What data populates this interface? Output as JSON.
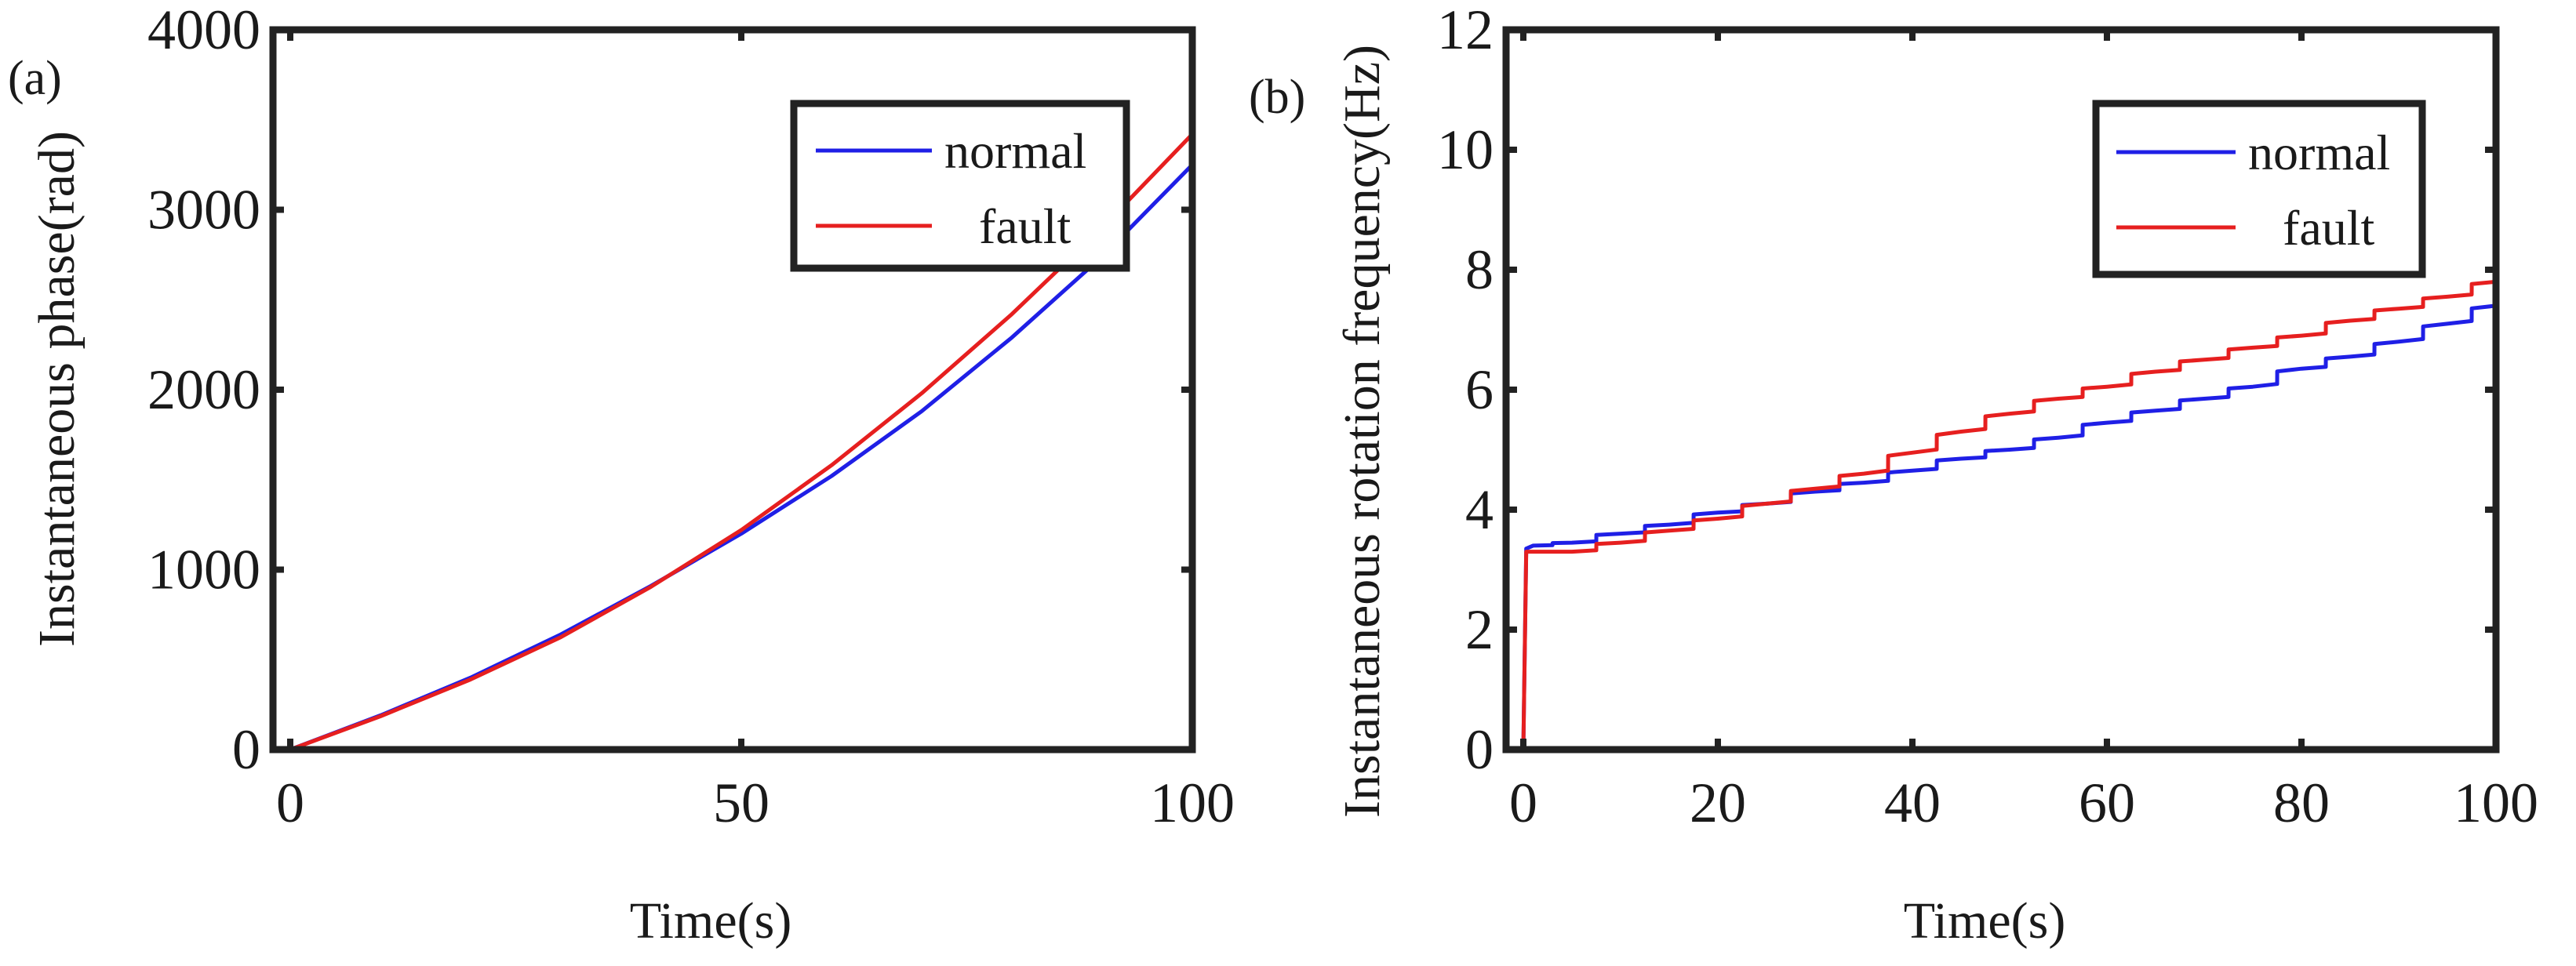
{
  "chart_data": [
    {
      "panel_label": "(a)",
      "type": "line",
      "xlabel": "Time(s)",
      "ylabel": "Instantaneous phase(rad)",
      "xlim": [
        0,
        100
      ],
      "ylim": [
        0,
        4000
      ],
      "xticks": [
        0,
        50,
        100
      ],
      "yticks": [
        0,
        1000,
        2000,
        3000,
        4000
      ],
      "grid": false,
      "legend_position": "top-right",
      "series": [
        {
          "name": "normal",
          "color": "#1f1fe6",
          "x": [
            0,
            10,
            20,
            30,
            40,
            50,
            60,
            70,
            80,
            90,
            100
          ],
          "values": [
            0,
            190,
            400,
            640,
            910,
            1200,
            1520,
            1880,
            2290,
            2740,
            3250
          ]
        },
        {
          "name": "fault",
          "color": "#e61f1f",
          "x": [
            0,
            10,
            20,
            30,
            40,
            50,
            60,
            70,
            80,
            90,
            100
          ],
          "values": [
            0,
            185,
            390,
            625,
            905,
            1220,
            1580,
            1980,
            2420,
            2900,
            3420
          ]
        }
      ]
    },
    {
      "panel_label": "(b)",
      "type": "line",
      "xlabel": "Time(s)",
      "ylabel": "Instantaneous rotation frequency(Hz)",
      "xlim": [
        0,
        100
      ],
      "ylim": [
        0,
        12
      ],
      "xticks": [
        0,
        20,
        40,
        60,
        80,
        100
      ],
      "yticks": [
        0,
        2,
        4,
        6,
        8,
        10,
        12
      ],
      "grid": false,
      "legend_position": "top-right",
      "series": [
        {
          "name": "normal",
          "color": "#1f1fe6",
          "x": [
            0,
            0.3,
            1,
            5,
            10,
            15,
            20,
            25,
            30,
            35,
            40,
            45,
            50,
            55,
            60,
            65,
            70,
            75,
            80,
            85,
            90,
            95,
            100
          ],
          "values": [
            0,
            3.35,
            3.4,
            3.45,
            3.6,
            3.75,
            3.95,
            4.1,
            4.3,
            4.45,
            4.65,
            4.85,
            5.0,
            5.2,
            5.45,
            5.65,
            5.85,
            6.05,
            6.35,
            6.55,
            6.8,
            7.1,
            7.4
          ]
        },
        {
          "name": "fault",
          "color": "#e61f1f",
          "x": [
            0,
            0.3,
            1,
            5,
            10,
            15,
            20,
            25,
            30,
            35,
            40,
            45,
            50,
            55,
            60,
            65,
            70,
            75,
            80,
            85,
            90,
            95,
            100
          ],
          "values": [
            0,
            3.3,
            3.3,
            3.3,
            3.45,
            3.65,
            3.85,
            4.1,
            4.35,
            4.6,
            4.95,
            5.3,
            5.6,
            5.85,
            6.05,
            6.3,
            6.5,
            6.7,
            6.9,
            7.15,
            7.35,
            7.55,
            7.8
          ]
        }
      ]
    }
  ]
}
